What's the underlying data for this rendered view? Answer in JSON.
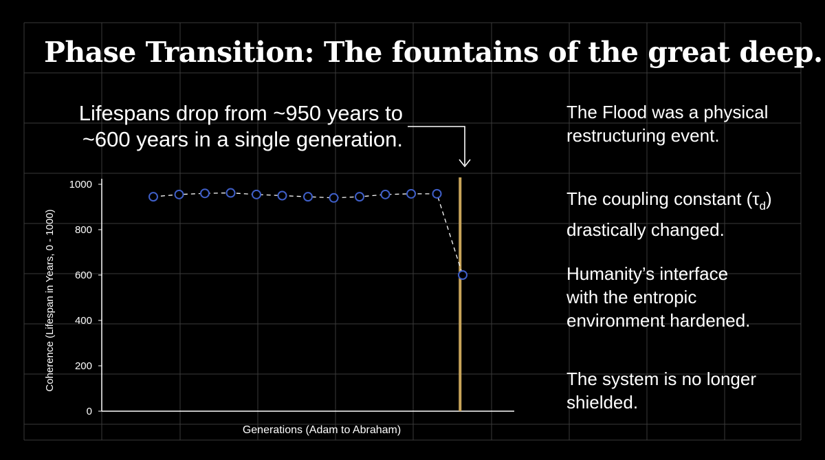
{
  "title": "Phase Transition: The fountains of the great deep.",
  "callout": {
    "line1": "Lifespans drop from ~950 years to",
    "line2": "~600 years in a single generation."
  },
  "notes": [
    {
      "lines": [
        "The Flood was a physical",
        "restructuring event."
      ]
    },
    {
      "line1_prefix": "The coupling constant (τ",
      "line1_sub": "d",
      "line1_suffix": ")",
      "line2": "drastically changed."
    },
    {
      "lines": [
        "Humanity’s interface",
        "with the entropic",
        "environment hardened."
      ]
    },
    {
      "lines": [
        "The system is no longer",
        "shielded."
      ]
    }
  ],
  "colors": {
    "background": "#000000",
    "grid": "#3a3a3a",
    "marker": "#3f5fc9",
    "transition_line": "#c9a55a",
    "text": "#ffffff"
  },
  "chart_data": {
    "type": "scatter",
    "xlabel": "Generations (Adam to Abraham)",
    "ylabel": "Coherence (Lifespan in Years, 0 - 1000)",
    "ylim": [
      0,
      1000
    ],
    "yticks": [
      0,
      200,
      400,
      600,
      800,
      1000
    ],
    "x": [
      1,
      2,
      3,
      4,
      5,
      6,
      7,
      8,
      9,
      10,
      11,
      12,
      13
    ],
    "xlim": [
      -1,
      15
    ],
    "values": [
      945,
      955,
      960,
      962,
      955,
      950,
      945,
      940,
      945,
      955,
      958,
      958,
      600
    ],
    "connector": "dashed",
    "transition_x": 12.9,
    "legend": "none",
    "grid": true
  }
}
